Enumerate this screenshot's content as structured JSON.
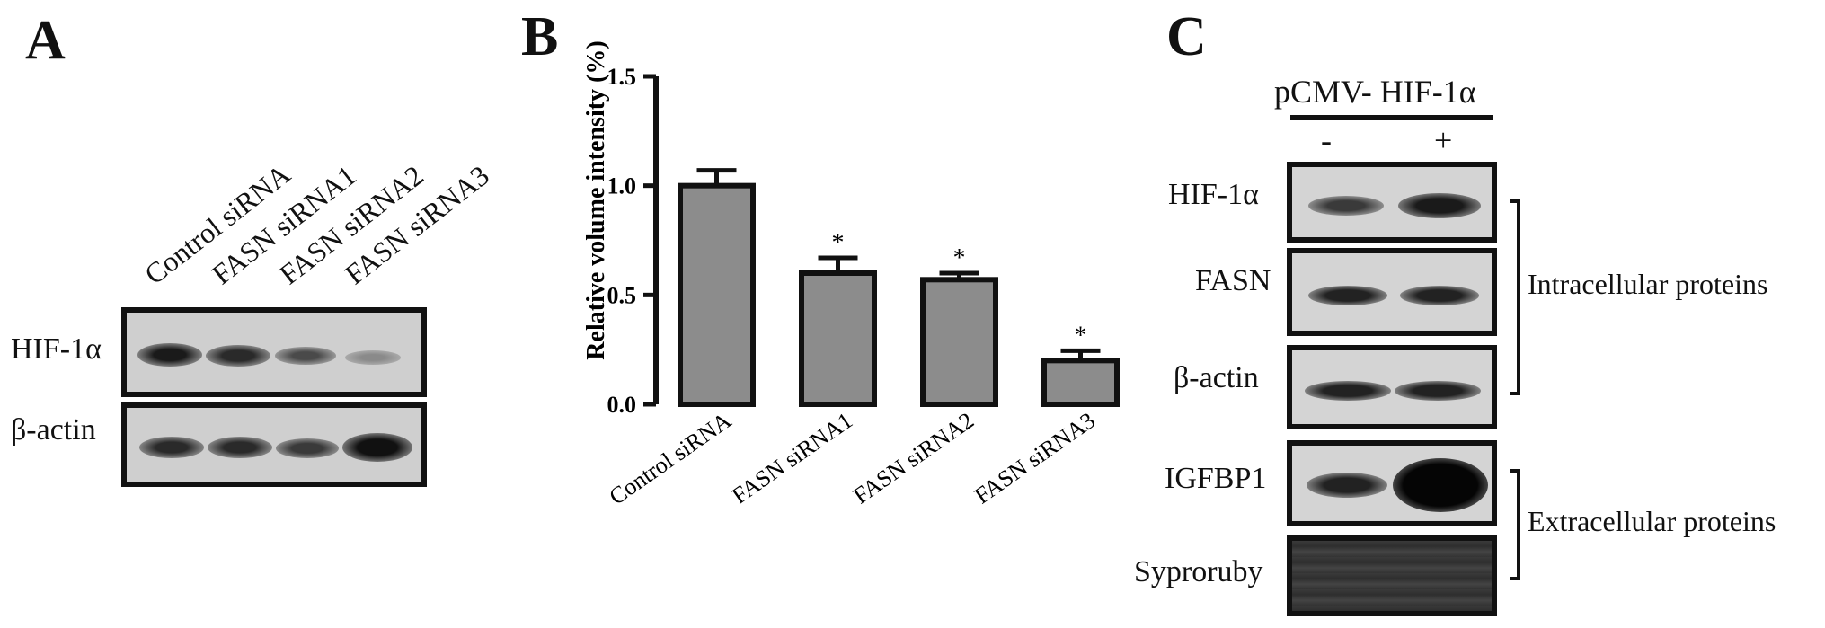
{
  "panels": {
    "a": "A",
    "b": "B",
    "c": "C"
  },
  "panel_a": {
    "lanes": [
      "Control siRNA",
      "FASN siRNA1",
      "FASN siRNA2",
      "FASN siRNA3"
    ],
    "rows": [
      "HIF-1α",
      "β-actin"
    ]
  },
  "chart_data": {
    "type": "bar",
    "categories": [
      "Control siRNA",
      "FASN siRNA1",
      "FASN siRNA2",
      "FASN siRNA3"
    ],
    "values": [
      1.0,
      0.6,
      0.57,
      0.2
    ],
    "errors": [
      0.07,
      0.07,
      0.03,
      0.045
    ],
    "significance": [
      "",
      "*",
      "*",
      "*"
    ],
    "ylabel": "Relative volume intensity (%)",
    "xlabel": "",
    "title": "",
    "ylim": [
      0,
      1.5
    ],
    "yticks": [
      "0.0",
      "0.5",
      "1.0",
      "1.5"
    ],
    "bar_color": "#8c8c8c",
    "grid": false
  },
  "panel_c": {
    "header": "pCMV- HIF-1α",
    "minus": "-",
    "plus": "+",
    "rows": [
      "HIF-1α",
      "FASN",
      "β-actin",
      "IGFBP1",
      "Syproruby"
    ],
    "groups": [
      "Intracellular proteins",
      "Extracellular proteins"
    ]
  }
}
